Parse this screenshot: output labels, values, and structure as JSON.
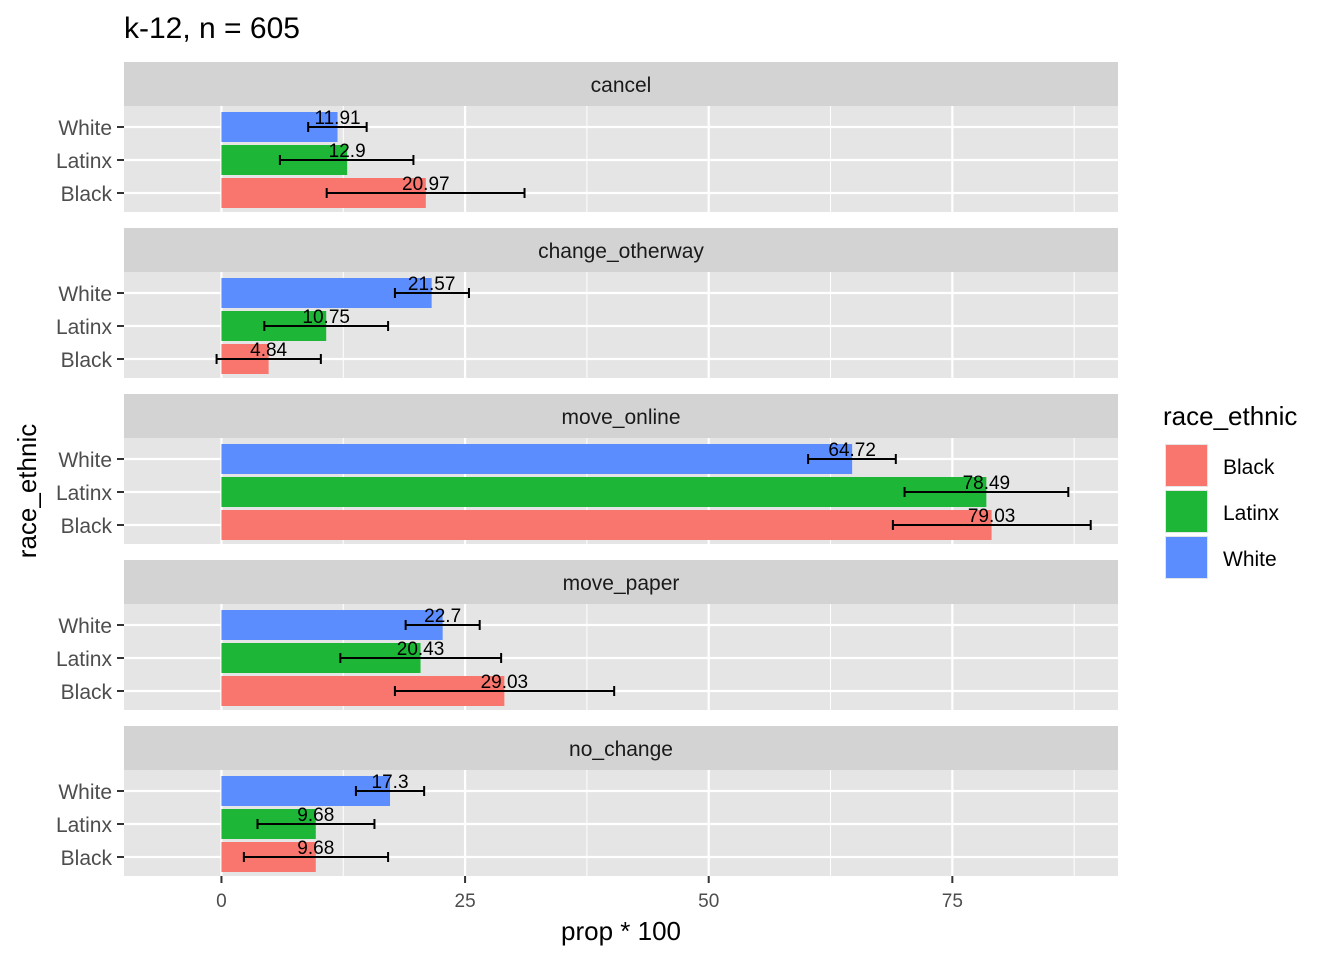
{
  "chart_data": {
    "type": "bar",
    "orientation": "horizontal",
    "title": "k-12, n = 605",
    "xlabel": "prop * 100",
    "ylabel": "race_ethnic",
    "xlim": [
      -10,
      92
    ],
    "x_ticks": [
      0,
      25,
      50,
      75
    ],
    "x_tick_labels": [
      "0",
      "25",
      "50",
      "75"
    ],
    "categories": [
      "White",
      "Latinx",
      "Black"
    ],
    "legend": {
      "title": "race_ethnic",
      "position": "right",
      "entries": [
        "Black",
        "Latinx",
        "White"
      ]
    },
    "colors": {
      "Black": "#F8766D",
      "Latinx": "#1DB637",
      "White": "#5C8DFF",
      "panel_bg": "#E5E5E5",
      "strip_bg": "#D3D3D3",
      "grid": "#FFFFFF"
    },
    "grid": true,
    "facets": [
      {
        "name": "cancel",
        "bars": [
          {
            "group": "White",
            "value": 11.91,
            "label": "11.91",
            "err_low": 8.9,
            "err_high": 14.9
          },
          {
            "group": "Latinx",
            "value": 12.9,
            "label": "12.9",
            "err_low": 6.0,
            "err_high": 19.7
          },
          {
            "group": "Black",
            "value": 20.97,
            "label": "20.97",
            "err_low": 10.8,
            "err_high": 31.1
          }
        ]
      },
      {
        "name": "change_otherway",
        "bars": [
          {
            "group": "White",
            "value": 21.57,
            "label": "21.57",
            "err_low": 17.8,
            "err_high": 25.4
          },
          {
            "group": "Latinx",
            "value": 10.75,
            "label": "10.75",
            "err_low": 4.4,
            "err_high": 17.1
          },
          {
            "group": "Black",
            "value": 4.84,
            "label": "4.84",
            "err_low": -0.5,
            "err_high": 10.2
          }
        ]
      },
      {
        "name": "move_online",
        "bars": [
          {
            "group": "White",
            "value": 64.72,
            "label": "64.72",
            "err_low": 60.2,
            "err_high": 69.2
          },
          {
            "group": "Latinx",
            "value": 78.49,
            "label": "78.49",
            "err_low": 70.1,
            "err_high": 86.9
          },
          {
            "group": "Black",
            "value": 79.03,
            "label": "79.03",
            "err_low": 68.9,
            "err_high": 89.2
          }
        ]
      },
      {
        "name": "move_paper",
        "bars": [
          {
            "group": "White",
            "value": 22.7,
            "label": "22.7",
            "err_low": 18.9,
            "err_high": 26.5
          },
          {
            "group": "Latinx",
            "value": 20.43,
            "label": "20.43",
            "err_low": 12.2,
            "err_high": 28.7
          },
          {
            "group": "Black",
            "value": 29.03,
            "label": "29.03",
            "err_low": 17.8,
            "err_high": 40.3
          }
        ]
      },
      {
        "name": "no_change",
        "bars": [
          {
            "group": "White",
            "value": 17.3,
            "label": "17.3",
            "err_low": 13.8,
            "err_high": 20.8
          },
          {
            "group": "Latinx",
            "value": 9.68,
            "label": "9.68",
            "err_low": 3.7,
            "err_high": 15.7
          },
          {
            "group": "Black",
            "value": 9.68,
            "label": "9.68",
            "err_low": 2.3,
            "err_high": 17.1
          }
        ]
      }
    ]
  }
}
